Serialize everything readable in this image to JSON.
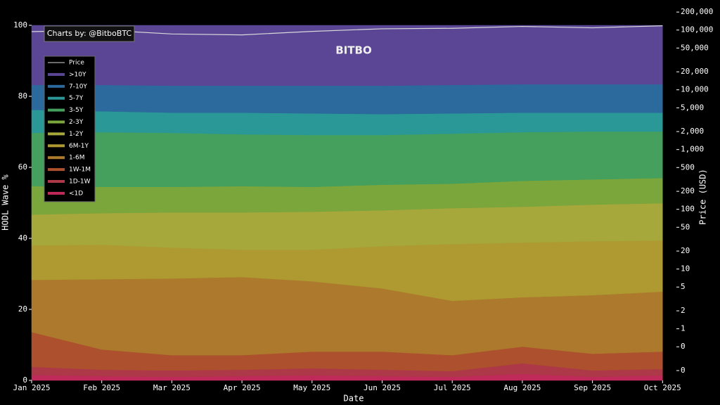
{
  "chart_data": {
    "type": "stacked_area",
    "title": "Charts by: @BitboBTC",
    "logo": "BITBO",
    "xlabel": "Date",
    "ylabel": "HODL Wave %",
    "y2label": "Price (USD)",
    "categories": [
      "Jan 2025",
      "Feb 2025",
      "Mar 2025",
      "Apr 2025",
      "May 2025",
      "Jun 2025",
      "Jul 2025",
      "Aug 2025",
      "Sep 2025",
      "Oct 2025"
    ],
    "ylim": [
      0,
      100
    ],
    "yticks": [
      0,
      20,
      40,
      60,
      80,
      100
    ],
    "y2lim": [
      0.137,
      120000
    ],
    "y2scale": "log",
    "y2ticks": [
      {
        "value": 0.2,
        "label": "0"
      },
      {
        "value": 0.5,
        "label": "0"
      },
      1,
      2,
      5,
      10,
      20,
      50,
      100,
      200,
      500,
      {
        "value": 1000,
        "label": "1,000"
      },
      {
        "value": 2000,
        "label": "2,000"
      },
      {
        "value": 5000,
        "label": "5,000"
      },
      {
        "value": 10000,
        "label": "10,000"
      },
      {
        "value": 20000,
        "label": "20,000"
      },
      {
        "value": 50000,
        "label": "50,000"
      },
      {
        "value": 100000,
        "label": "100,000"
      },
      {
        "value": 200000,
        "label": "200,000"
      }
    ],
    "legend": "upper left",
    "series": [
      {
        "name": "Price",
        "color": "#d8d8d8",
        "axis": "y2",
        "type": "line",
        "values": [
          94000,
          100000,
          86000,
          83000,
          95000,
          105000,
          107000,
          115000,
          109000,
          118000
        ]
      },
      {
        "name": ">10Y",
        "color": "#5b4696",
        "values": [
          16.8,
          16.8,
          17.0,
          17.0,
          17.0,
          17.0,
          16.8,
          16.6,
          16.6,
          16.6
        ]
      },
      {
        "name": "7-10Y",
        "color": "#2c699d",
        "values": [
          7.0,
          7.4,
          7.6,
          7.6,
          7.8,
          8.0,
          8.0,
          8.0,
          8.0,
          8.0
        ]
      },
      {
        "name": "5-7Y",
        "color": "#2a9897",
        "values": [
          6.5,
          5.9,
          5.7,
          6.1,
          6.1,
          5.9,
          5.7,
          5.5,
          5.3,
          5.3
        ]
      },
      {
        "name": "3-5Y",
        "color": "#45a05e",
        "values": [
          15.0,
          15.4,
          15.2,
          14.6,
          14.6,
          14.0,
          14.1,
          13.7,
          13.5,
          13.1
        ]
      },
      {
        "name": "2-3Y",
        "color": "#7ba63c",
        "values": [
          8.0,
          7.4,
          7.2,
          7.4,
          7.0,
          7.2,
          6.9,
          7.3,
          7.1,
          7.1
        ]
      },
      {
        "name": "1-2Y",
        "color": "#a6a83c",
        "values": [
          8.7,
          8.9,
          9.9,
          10.5,
          10.7,
          10.1,
          10.1,
          10.1,
          10.3,
          10.5
        ]
      },
      {
        "name": "6M-1Y",
        "color": "#ae9a30",
        "values": [
          9.7,
          9.7,
          8.7,
          7.7,
          8.9,
          11.9,
          16.0,
          15.4,
          15.2,
          14.4
        ]
      },
      {
        "name": "1-6M",
        "color": "#ad7a2d",
        "values": [
          14.7,
          19.8,
          21.6,
          22.0,
          19.8,
          17.8,
          15.3,
          13.9,
          16.5,
          16.9
        ]
      },
      {
        "name": "1W-1M",
        "color": "#ad502e",
        "values": [
          9.8,
          5.7,
          4.3,
          4.1,
          4.7,
          5.1,
          4.5,
          4.7,
          4.7,
          4.9
        ]
      },
      {
        "name": "1D-1W",
        "color": "#ad3848",
        "values": [
          2.3,
          1.8,
          1.8,
          1.8,
          2.0,
          1.8,
          1.6,
          3.0,
          1.8,
          1.8
        ]
      },
      {
        "name": "<1D",
        "color": "#c02a5a",
        "values": [
          1.5,
          1.2,
          1.0,
          1.2,
          1.4,
          1.2,
          1.0,
          1.8,
          1.0,
          1.4
        ]
      }
    ]
  }
}
